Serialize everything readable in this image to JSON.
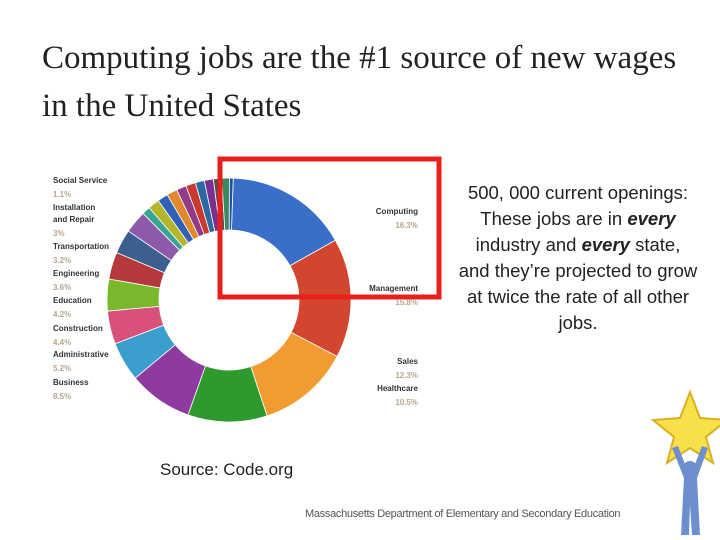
{
  "slide": {
    "title": "Computing jobs are the #1 source of new wages in the United States",
    "body": [
      "500, 000 current openings: These jobs are in ",
      "every",
      " industry and ",
      "every",
      " state, and they’re projected to grow at twice the rate of all other jobs."
    ],
    "source": "Source: Code.org",
    "footer": "Massachusetts Department of Elementary and Secondary Education"
  },
  "chart_data": {
    "type": "pie",
    "donut": true,
    "categories": [
      "Computing",
      "Management",
      "Sales",
      "Healthcare",
      "Business",
      "Administrative",
      "Construction",
      "Education",
      "Engineering",
      "Transportation",
      "Installation and Repair",
      "Social Service",
      null,
      null,
      null,
      null,
      null,
      null,
      null,
      null,
      null,
      null
    ],
    "values": [
      16.3,
      15.8,
      12.3,
      10.5,
      8.5,
      5.2,
      4.4,
      4.2,
      3.6,
      3.2,
      3,
      1.1,
      1.5,
      1.4,
      1.4,
      1.3,
      1.3,
      1.2,
      1.2,
      1.1,
      1.0,
      0.5
    ],
    "value_labels": [
      "16.3%",
      "15.8%",
      "12.3%",
      "10.5%",
      "8.5%",
      "5.2%",
      "4.4%",
      "4.2%",
      "3.6%",
      "3.2%",
      "3%",
      "1.1%",
      null,
      null,
      null,
      null,
      null,
      null,
      null,
      null,
      null,
      null
    ],
    "colors": [
      "#3a6fc9",
      "#d2452f",
      "#f29b30",
      "#2e9a2e",
      "#8e3aa0",
      "#3a9fcf",
      "#d9507a",
      "#78b82a",
      "#b5393a",
      "#3b5f8f",
      "#8c5aa8",
      "#3aa595",
      "#b5b52a",
      "#3060b8",
      "#e0882a",
      "#903a8a",
      "#c83a30",
      "#2a6aa0",
      "#7a3090",
      "#505050",
      "#3a8a60",
      "#2050a0"
    ]
  }
}
